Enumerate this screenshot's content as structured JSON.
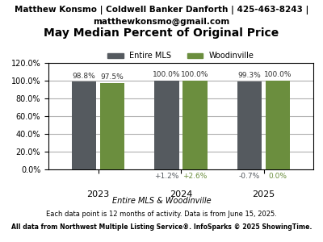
{
  "chart_data": {
    "type": "bar",
    "header": [
      "Matthew Konsmo | Coldwell Banker Danforth | 425-463-8243 |",
      "matthewkonsmo@gmail.com"
    ],
    "title": "May Median Percent of Original Price",
    "categories": [
      "2023",
      "2024",
      "2025"
    ],
    "series": [
      {
        "name": "Entire MLS",
        "color": "#555A5F",
        "values": [
          98.8,
          100.0,
          99.3
        ],
        "value_labels": [
          "98.8%",
          "100.0%",
          "99.3%"
        ],
        "change_labels": [
          null,
          "+1.2%",
          "-0.7%"
        ]
      },
      {
        "name": "Woodinville",
        "color": "#6B8E3E",
        "values": [
          97.5,
          100.0,
          100.0
        ],
        "value_labels": [
          "97.5%",
          "100.0%",
          "100.0%"
        ],
        "change_labels": [
          null,
          "+2.6%",
          "0.0%"
        ]
      }
    ],
    "data_labels": true,
    "ylim": [
      0,
      120
    ],
    "yticks": [
      {
        "value": 0,
        "label": "0.0%"
      },
      {
        "value": 20,
        "label": "20.0%"
      },
      {
        "value": 40,
        "label": "40.0%"
      },
      {
        "value": 60,
        "label": "60.0%"
      },
      {
        "value": 80,
        "label": "80.0%"
      },
      {
        "value": 100,
        "label": "100.0%"
      },
      {
        "value": 120,
        "label": "120.0%"
      }
    ],
    "grid": true,
    "legend": "upper center",
    "footer": [
      "Entire MLS & Woodinville",
      "Each data point is 12 months of activity. Data is from June 15, 2025.",
      "All data from Northwest Multiple Listing Service®. InfoSparks © 2025 ShowingTime."
    ]
  }
}
